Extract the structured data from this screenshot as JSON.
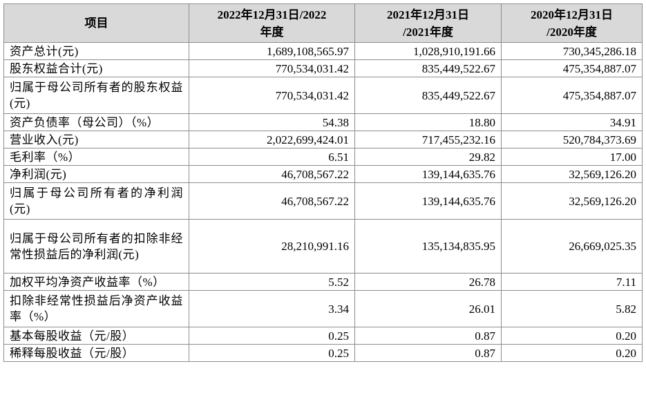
{
  "header": {
    "item": "项目",
    "col1_line1": "2022年12月31日/2022",
    "col1_line2": "年度",
    "col2_line1": "2021年12月31日",
    "col2_line2": "/2021年度",
    "col3_line1": "2020年12月31日",
    "col3_line2": "/2020年度"
  },
  "rows": [
    {
      "label": "资产总计(元)",
      "v2022": "1,689,108,565.97",
      "v2021": "1,028,910,191.66",
      "v2020": "730,345,286.18"
    },
    {
      "label": "股东权益合计(元)",
      "v2022": "770,534,031.42",
      "v2021": "835,449,522.67",
      "v2020": "475,354,887.07"
    },
    {
      "label": "归属于母公司所有者的股东权益(元)",
      "v2022": "770,534,031.42",
      "v2021": "835,449,522.67",
      "v2020": "475,354,887.07"
    },
    {
      "label": "资产负债率（母公司）（%）",
      "v2022": "54.38",
      "v2021": "18.80",
      "v2020": "34.91"
    },
    {
      "label": "营业收入(元)",
      "v2022": "2,022,699,424.01",
      "v2021": "717,455,232.16",
      "v2020": "520,784,373.69"
    },
    {
      "label": "毛利率（%）",
      "v2022": "6.51",
      "v2021": "29.82",
      "v2020": "17.00"
    },
    {
      "label": "净利润(元)",
      "v2022": "46,708,567.22",
      "v2021": "139,144,635.76",
      "v2020": "32,569,126.20"
    },
    {
      "label": "归属于母公司所有者的净利润(元)",
      "v2022": "46,708,567.22",
      "v2021": "139,144,635.76",
      "v2020": "32,569,126.20"
    },
    {
      "label": "归属于母公司所有者的扣除非经常性损益后的净利润(元)",
      "v2022": "28,210,991.16",
      "v2021": "135,134,835.95",
      "v2020": "26,669,025.35"
    },
    {
      "label": "加权平均净资产收益率（%）",
      "v2022": "5.52",
      "v2021": "26.78",
      "v2020": "7.11"
    },
    {
      "label": "扣除非经常性损益后净资产收益率（%）",
      "v2022": "3.34",
      "v2021": "26.01",
      "v2020": "5.82"
    },
    {
      "label": "基本每股收益（元/股）",
      "v2022": "0.25",
      "v2021": "0.87",
      "v2020": "0.20"
    },
    {
      "label": "稀释每股收益（元/股）",
      "v2022": "0.25",
      "v2021": "0.87",
      "v2020": "0.20"
    }
  ]
}
